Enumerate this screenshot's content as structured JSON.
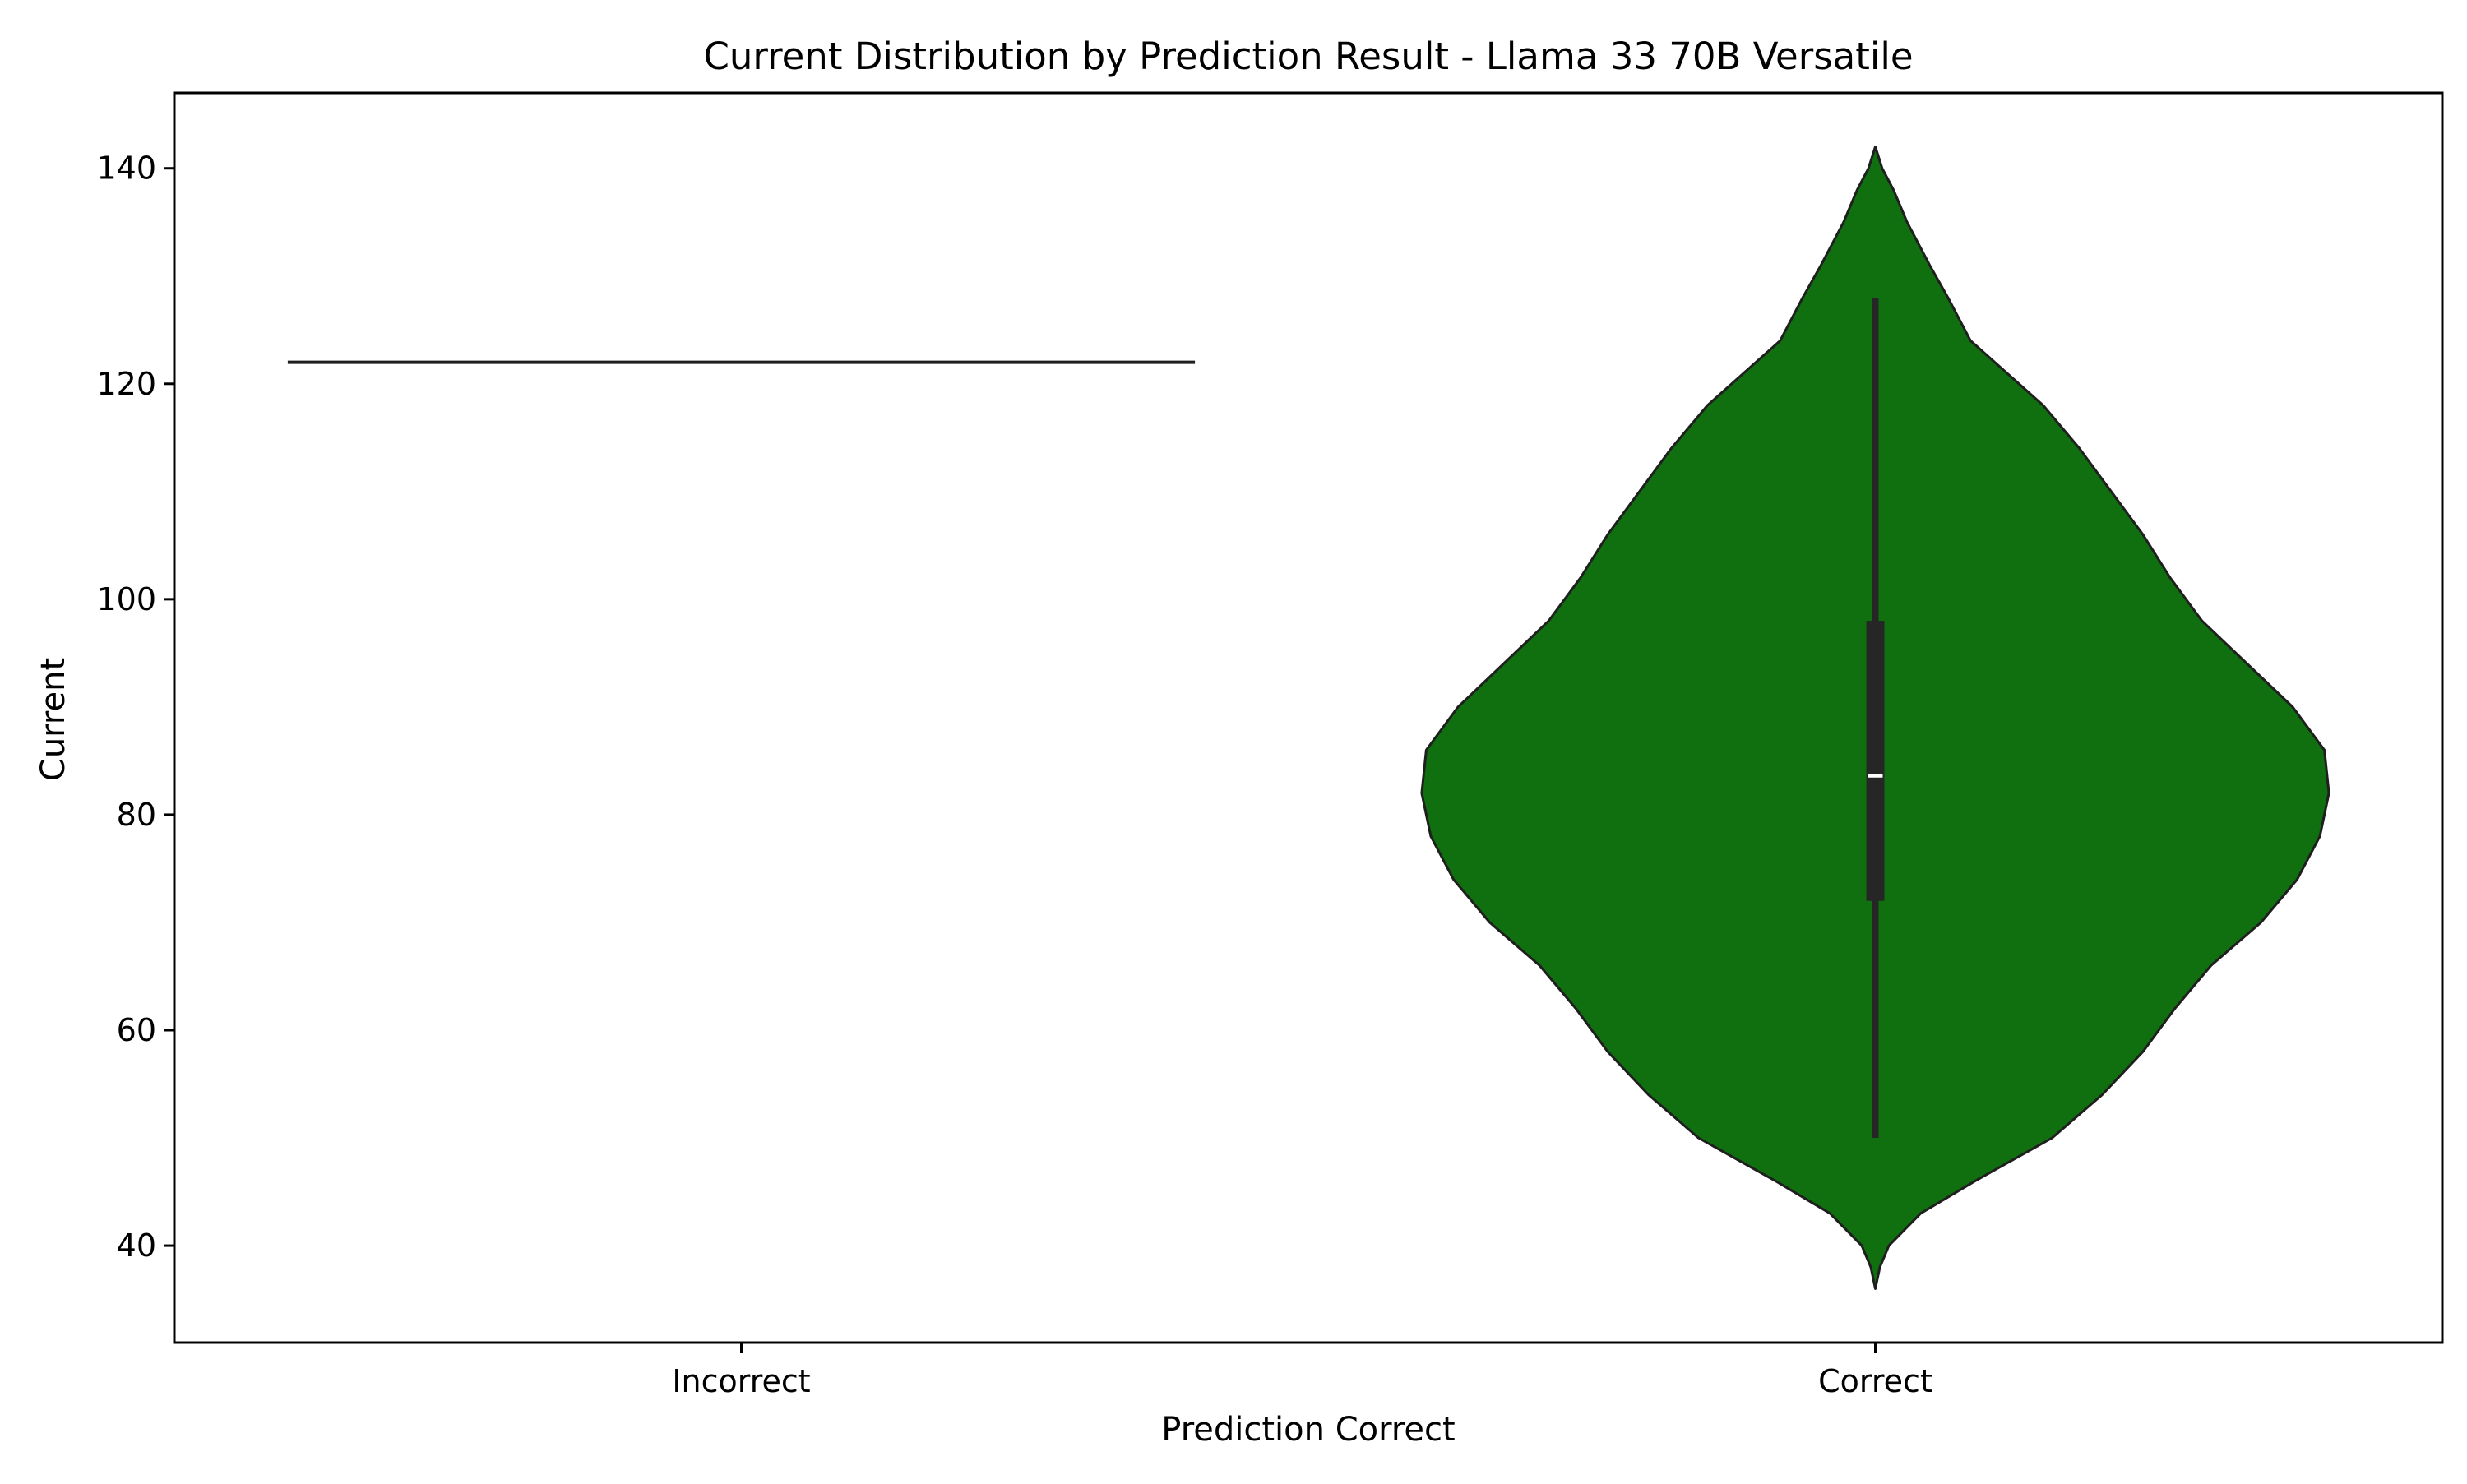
{
  "chart_data": {
    "type": "violin",
    "title": "Current Distribution by Prediction Result - Llama 33 70B Versatile",
    "xlabel": "Prediction Correct",
    "ylabel": "Current",
    "categories": [
      "Incorrect",
      "Correct"
    ],
    "ylim": [
      31,
      147
    ],
    "yticks": [
      40,
      60,
      80,
      100,
      120,
      140
    ],
    "grid": false,
    "legend": "none",
    "fill_color": "#107010",
    "edge_color": "#1f1f1f",
    "violins": [
      {
        "category": "Incorrect",
        "single_value": 122,
        "width_fraction": 1.0
      },
      {
        "category": "Correct",
        "min": 36,
        "q1": 72,
        "median": 83.6,
        "q3": 98,
        "max": 142,
        "whisker_low": 50,
        "whisker_high": 128,
        "density_profile": [
          {
            "y": 36,
            "w": 0.0
          },
          {
            "y": 38,
            "w": 0.01
          },
          {
            "y": 40,
            "w": 0.03
          },
          {
            "y": 43,
            "w": 0.1
          },
          {
            "y": 46,
            "w": 0.22
          },
          {
            "y": 50,
            "w": 0.39
          },
          {
            "y": 54,
            "w": 0.5
          },
          {
            "y": 58,
            "w": 0.59
          },
          {
            "y": 62,
            "w": 0.66
          },
          {
            "y": 66,
            "w": 0.74
          },
          {
            "y": 70,
            "w": 0.85
          },
          {
            "y": 74,
            "w": 0.93
          },
          {
            "y": 78,
            "w": 0.98
          },
          {
            "y": 82,
            "w": 1.0
          },
          {
            "y": 86,
            "w": 0.99
          },
          {
            "y": 90,
            "w": 0.92
          },
          {
            "y": 94,
            "w": 0.82
          },
          {
            "y": 98,
            "w": 0.72
          },
          {
            "y": 102,
            "w": 0.65
          },
          {
            "y": 106,
            "w": 0.59
          },
          {
            "y": 110,
            "w": 0.52
          },
          {
            "y": 114,
            "w": 0.45
          },
          {
            "y": 118,
            "w": 0.37
          },
          {
            "y": 121,
            "w": 0.29
          },
          {
            "y": 124,
            "w": 0.21
          },
          {
            "y": 128,
            "w": 0.16
          },
          {
            "y": 131,
            "w": 0.12
          },
          {
            "y": 135,
            "w": 0.07
          },
          {
            "y": 138,
            "w": 0.04
          },
          {
            "y": 140,
            "w": 0.015
          },
          {
            "y": 142,
            "w": 0.0
          }
        ]
      }
    ]
  }
}
